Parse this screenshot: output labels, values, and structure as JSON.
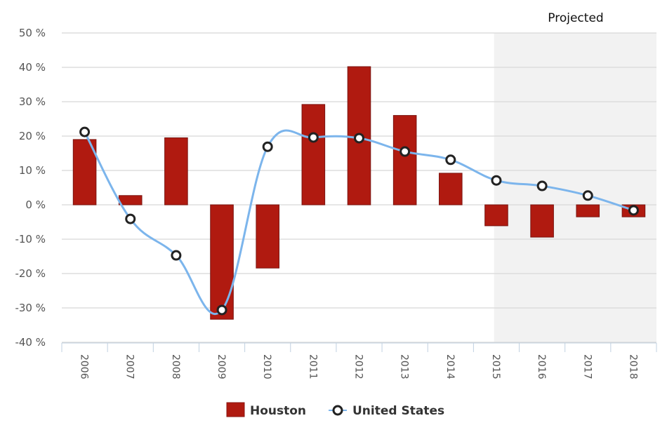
{
  "chart_data": {
    "type": "bar",
    "title": "",
    "xlabel": "",
    "ylabel": "",
    "categories": [
      "2006",
      "2007",
      "2008",
      "2009",
      "2010",
      "2011",
      "2012",
      "2013",
      "2014",
      "2015",
      "2016",
      "2017",
      "2018"
    ],
    "ylim": [
      -40,
      50
    ],
    "yticks": [
      50,
      40,
      30,
      20,
      10,
      0,
      -10,
      -20,
      -30,
      -40
    ],
    "ytick_labels": [
      "50 %",
      "40 %",
      "30 %",
      "20 %",
      "10 %",
      "0 %",
      "-10 %",
      "-20 %",
      "-30 %",
      "-40 %"
    ],
    "grid": true,
    "series": [
      {
        "name": "Houston",
        "type": "bar",
        "color": "#b01a10",
        "values": [
          19,
          2.7,
          19.5,
          -33.3,
          -18.4,
          29.2,
          40.2,
          26,
          9.2,
          -6.1,
          -9.4,
          -3.5,
          -3.5
        ]
      },
      {
        "name": "United States",
        "type": "line",
        "color": "#7cb5ec",
        "values": [
          21.2,
          -4.1,
          -14.7,
          -30.6,
          16.9,
          19.6,
          19.4,
          15.5,
          13.1,
          7.1,
          5.5,
          2.7,
          -1.6
        ]
      }
    ],
    "plot_band": {
      "label": "Projected",
      "from_category": "2015",
      "to_category": "2018",
      "color": "#f2f2f2"
    },
    "legend": {
      "position": "bottom-center",
      "items": [
        "Houston",
        "United States"
      ]
    }
  }
}
